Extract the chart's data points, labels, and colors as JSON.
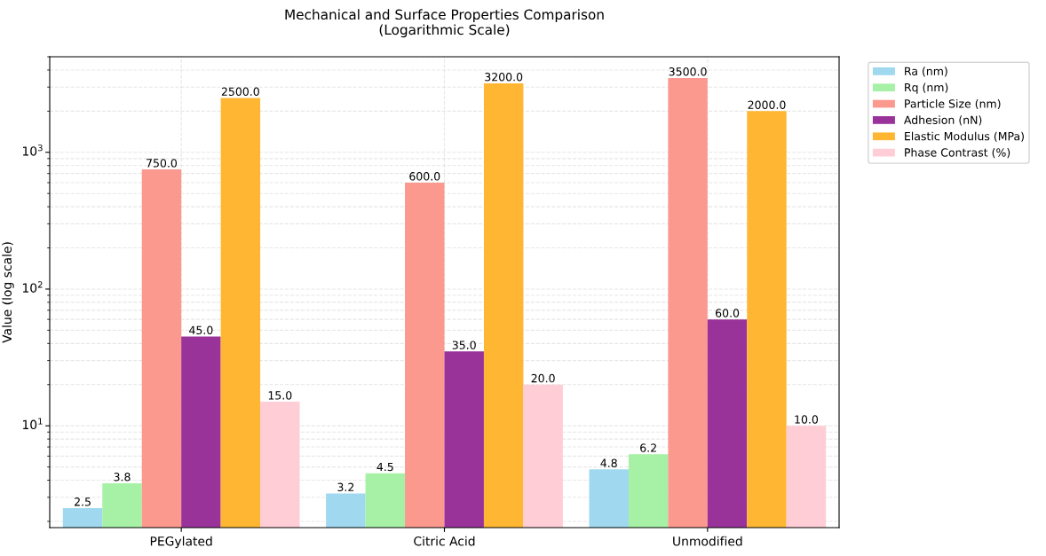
{
  "chart_data": {
    "type": "bar",
    "title": "Mechanical and Surface Properties Comparison\n(Logarithmic Scale)",
    "ylabel": "Value (log scale)",
    "categories": [
      "PEGylated",
      "Citric Acid",
      "Unmodified"
    ],
    "series": [
      {
        "name": "Ra (nm)",
        "color": "#9fd8ef",
        "values": [
          2.5,
          3.2,
          4.8
        ],
        "value_labels": [
          "2.5",
          "3.2",
          "4.8"
        ]
      },
      {
        "name": "Rq (nm)",
        "color": "#a6f1a6",
        "values": [
          3.8,
          4.5,
          6.2
        ],
        "value_labels": [
          "3.8",
          "4.5",
          "6.2"
        ]
      },
      {
        "name": "Particle Size (nm)",
        "color": "#fb998e",
        "values": [
          750,
          600,
          3500
        ],
        "value_labels": [
          "750.0",
          "600.0",
          "3500.0"
        ]
      },
      {
        "name": "Adhesion (nN)",
        "color": "#993399",
        "values": [
          45,
          35,
          60
        ],
        "value_labels": [
          "45.0",
          "35.0",
          "60.0"
        ]
      },
      {
        "name": "Elastic Modulus (MPa)",
        "color": "#ffb733",
        "values": [
          2500,
          3200,
          2000
        ],
        "value_labels": [
          "2500.0",
          "3200.0",
          "2000.0"
        ]
      },
      {
        "name": "Phase Contrast (%)",
        "color": "#ffcdd5",
        "values": [
          15,
          20,
          10
        ],
        "value_labels": [
          "15.0",
          "20.0",
          "10.0"
        ]
      }
    ],
    "log": "y",
    "ylim": [
      1.8,
      5000
    ],
    "yticks": [
      {
        "value": 10,
        "label": "10$^{1}$"
      },
      {
        "value": 100,
        "label": "10$^{2}$"
      },
      {
        "value": 1000,
        "label": "10$^{3}$"
      }
    ],
    "grid": true,
    "legend": "top right"
  }
}
